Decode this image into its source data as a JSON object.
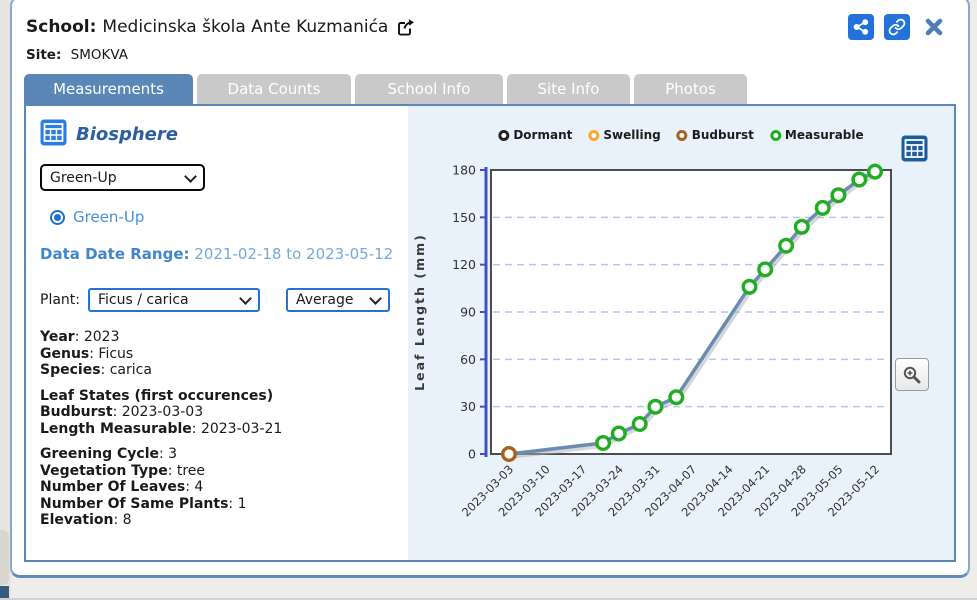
{
  "window": {
    "school_label": "School:",
    "school_name": "Medicinska škola Ante Kuzmanića",
    "site_label": "Site:",
    "site_name": "SMOKVA"
  },
  "icons": {
    "header_share": "share-icon",
    "header_link": "link-icon",
    "header_close": "close-icon",
    "school_external": "external-link-icon",
    "biosphere": "table-grid-icon",
    "chart_table": "table-grid-icon",
    "chart_zoom": "zoom-in-magnifier-icon",
    "radio": "radio-selected-icon",
    "select_chevron": "chevron-down-icon"
  },
  "tabs": [
    {
      "label": "Measurements",
      "active": true
    },
    {
      "label": "Data Counts",
      "active": false
    },
    {
      "label": "School Info",
      "active": false
    },
    {
      "label": "Site Info",
      "active": false
    },
    {
      "label": "Photos",
      "active": false
    }
  ],
  "panel": {
    "section_title": "Biosphere",
    "protocol_select": {
      "value": "Green-Up"
    },
    "radio": {
      "label": "Green-Up",
      "selected": true
    },
    "date_range_label": "Data Date Range:",
    "date_range_value": "2021-02-18 to 2023-05-12",
    "plant_label": "Plant:",
    "plant_select": {
      "value": "Ficus / carica"
    },
    "aggregation_select": {
      "value": "Average"
    },
    "info_groups": [
      {
        "rows": [
          {
            "label": "Year",
            "value": "2023"
          },
          {
            "label": "Genus",
            "value": "Ficus"
          },
          {
            "label": "Species",
            "value": "carica"
          }
        ]
      },
      {
        "heading": "Leaf States (first occurences)",
        "rows": [
          {
            "label": "Budburst",
            "value": "2023-03-03"
          },
          {
            "label": "Length Measurable",
            "value": "2023-03-21"
          }
        ]
      },
      {
        "rows": [
          {
            "label": "Greening Cycle",
            "value": "3"
          },
          {
            "label": "Vegetation Type",
            "value": "tree"
          },
          {
            "label": "Number Of Leaves",
            "value": "4"
          },
          {
            "label": "Number Of Same Plants",
            "value": "1"
          },
          {
            "label": "Elevation",
            "value": "8"
          }
        ]
      }
    ]
  },
  "chart_data": {
    "type": "line",
    "title": "",
    "xlabel": "",
    "ylabel": "Leaf Length (mm)",
    "ylim": [
      0,
      180
    ],
    "yticks": [
      0,
      30,
      60,
      90,
      120,
      150,
      180
    ],
    "grid": "horizontal-dashed",
    "legend_position": "top",
    "legend": [
      {
        "label": "Dormant",
        "color": "#222222"
      },
      {
        "label": "Swelling",
        "color": "#ffa726"
      },
      {
        "label": "Budburst",
        "color": "#a9611f"
      },
      {
        "label": "Measurable",
        "color": "#21ad21"
      }
    ],
    "x_ticks": [
      "2023-03-03",
      "2023-03-10",
      "2023-03-17",
      "2023-03-24",
      "2023-03-31",
      "2023-04-07",
      "2023-04-14",
      "2023-04-21",
      "2023-04-28",
      "2023-05-05",
      "2023-05-12"
    ],
    "series": [
      {
        "name": "Average Leaf Length",
        "color": "#6b8cb0",
        "points": [
          {
            "date": "2023-03-03",
            "value": 0,
            "state": "Budburst"
          },
          {
            "date": "2023-03-21",
            "value": 7,
            "state": "Measurable"
          },
          {
            "date": "2023-03-24",
            "value": 13,
            "state": "Measurable"
          },
          {
            "date": "2023-03-28",
            "value": 19,
            "state": "Measurable"
          },
          {
            "date": "2023-03-31",
            "value": 30,
            "state": "Measurable"
          },
          {
            "date": "2023-04-04",
            "value": 36,
            "state": "Measurable"
          },
          {
            "date": "2023-04-18",
            "value": 106,
            "state": "Measurable"
          },
          {
            "date": "2023-04-21",
            "value": 117,
            "state": "Measurable"
          },
          {
            "date": "2023-04-25",
            "value": 132,
            "state": "Measurable"
          },
          {
            "date": "2023-04-28",
            "value": 144,
            "state": "Measurable"
          },
          {
            "date": "2023-05-02",
            "value": 156,
            "state": "Measurable"
          },
          {
            "date": "2023-05-05",
            "value": 164,
            "state": "Measurable"
          },
          {
            "date": "2023-05-09",
            "value": 174,
            "state": "Measurable"
          },
          {
            "date": "2023-05-12",
            "value": 179,
            "state": "Measurable"
          }
        ]
      }
    ],
    "colors": {
      "axis_line": "#3d52c9",
      "grid_line": "#b9c4ee",
      "plot_border": "#4d4d4d",
      "tick_text": "#333333",
      "panel_bg": "#e9f2fb"
    }
  },
  "theme": {
    "active_tab": "#5b87b7",
    "inactive_tab": "#c9c9c9",
    "button_blue": "#2272d9",
    "close_x": "#4d7fb5",
    "link_blue": "#4a90d9"
  }
}
